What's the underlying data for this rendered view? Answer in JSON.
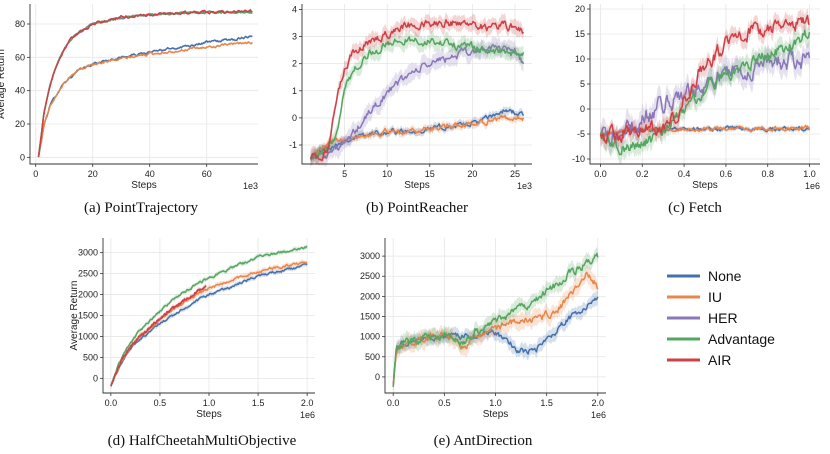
{
  "colors": {
    "None": "#4470ad",
    "IU": "#e8864b",
    "HER": "#8a78b8",
    "Advantage": "#55a661",
    "AIR": "#cc4145"
  },
  "legend": {
    "items": [
      {
        "name": "None",
        "label": "None"
      },
      {
        "name": "IU",
        "label": "IU"
      },
      {
        "name": "HER",
        "label": "HER"
      },
      {
        "name": "Advantage",
        "label": "Advantage"
      },
      {
        "name": "AIR",
        "label": "AIR"
      }
    ]
  },
  "chart_data": [
    {
      "type": "line",
      "id": "point-trajectory",
      "caption": "(a) PointTrajectory",
      "xlabel": "Steps",
      "ylabel": "Average Return",
      "x_multiplier": "1e3",
      "xlim": [
        -2,
        78
      ],
      "ylim": [
        -4,
        92
      ],
      "xticks": [
        0,
        20,
        40,
        60
      ],
      "xticklabels": [
        "0",
        "20",
        "40",
        "60"
      ],
      "yticks": [
        0,
        20,
        40,
        60,
        80
      ],
      "yticklabels": [
        "0",
        "20",
        "40",
        "60",
        "80"
      ],
      "series": [
        {
          "name": "None",
          "noise": 0.6,
          "band": 0.8,
          "x": [
            1,
            3,
            5,
            8,
            10,
            15,
            20,
            30,
            40,
            50,
            60,
            70,
            76
          ],
          "y": [
            0,
            20,
            31,
            40,
            45,
            52,
            56,
            60,
            63,
            66,
            69,
            71,
            73
          ]
        },
        {
          "name": "IU",
          "noise": 0.6,
          "band": 0.8,
          "x": [
            1,
            3,
            5,
            8,
            10,
            15,
            20,
            30,
            40,
            50,
            60,
            70,
            76
          ],
          "y": [
            0,
            20,
            31,
            40,
            45,
            52,
            56,
            59,
            62,
            64,
            66,
            68,
            69
          ]
        },
        {
          "name": "HER",
          "noise": 0.5,
          "band": 0.6,
          "x": [
            1,
            3,
            5,
            7,
            10,
            12,
            15,
            20,
            30,
            40,
            50,
            60,
            76
          ],
          "y": [
            0,
            28,
            43,
            54,
            65,
            70,
            75,
            80,
            84,
            85.5,
            86.5,
            87,
            87
          ]
        },
        {
          "name": "Advantage",
          "noise": 0.5,
          "band": 0.6,
          "x": [
            1,
            3,
            5,
            7,
            10,
            12,
            15,
            20,
            30,
            40,
            50,
            60,
            76
          ],
          "y": [
            0,
            28,
            43,
            54,
            65,
            70,
            75,
            80,
            84,
            85.5,
            86.5,
            87,
            87
          ]
        },
        {
          "name": "AIR",
          "noise": 0.7,
          "band": 0.6,
          "x": [
            1,
            3,
            5,
            7,
            10,
            12,
            15,
            20,
            30,
            40,
            50,
            60,
            76
          ],
          "y": [
            0,
            28,
            43,
            54,
            65,
            70,
            75,
            80,
            84,
            85.5,
            86.5,
            87,
            87.5
          ]
        }
      ]
    },
    {
      "type": "line",
      "id": "point-reacher",
      "caption": "(b) PointReacher",
      "xlabel": "Steps",
      "ylabel": "",
      "x_multiplier": "1e3",
      "xlim": [
        0,
        27
      ],
      "ylim": [
        -1.7,
        4.2
      ],
      "xticks": [
        5,
        10,
        15,
        20,
        25
      ],
      "xticklabels": [
        "5",
        "10",
        "15",
        "20",
        "25"
      ],
      "yticks": [
        -1,
        0,
        1,
        2,
        3,
        4
      ],
      "yticklabels": [
        "-1",
        "0",
        "1",
        "2",
        "3",
        "4"
      ],
      "series": [
        {
          "name": "None",
          "noise": 0.08,
          "band": 0.15,
          "x": [
            1,
            3,
            5,
            8,
            10,
            12,
            15,
            18,
            20,
            22,
            24,
            25,
            26
          ],
          "y": [
            -1.4,
            -1.1,
            -0.8,
            -0.6,
            -0.5,
            -0.5,
            -0.4,
            -0.3,
            -0.2,
            0.0,
            0.3,
            0.2,
            0.1
          ]
        },
        {
          "name": "IU",
          "noise": 0.08,
          "band": 0.15,
          "x": [
            1,
            3,
            5,
            8,
            10,
            12,
            15,
            18,
            20,
            22,
            24,
            26
          ],
          "y": [
            -1.4,
            -1.0,
            -0.7,
            -0.6,
            -0.5,
            -0.5,
            -0.4,
            -0.3,
            -0.2,
            -0.1,
            0.0,
            0.0
          ]
        },
        {
          "name": "HER",
          "noise": 0.12,
          "band": 0.35,
          "x": [
            1,
            3,
            5,
            7,
            9,
            12,
            15,
            18,
            21,
            24,
            25,
            26
          ],
          "y": [
            -1.4,
            -1.3,
            -1.0,
            -0.2,
            0.6,
            1.5,
            2.0,
            2.3,
            2.5,
            2.6,
            2.5,
            2.0
          ]
        },
        {
          "name": "Advantage",
          "noise": 0.12,
          "band": 0.3,
          "x": [
            1,
            3,
            4,
            5,
            6,
            8,
            10,
            12,
            15,
            18,
            20,
            22,
            24,
            26
          ],
          "y": [
            -1.4,
            -1.3,
            -0.5,
            1.0,
            1.8,
            2.4,
            2.7,
            2.9,
            2.8,
            2.7,
            2.6,
            2.5,
            2.4,
            2.3
          ]
        },
        {
          "name": "AIR",
          "noise": 0.12,
          "band": 0.3,
          "x": [
            1,
            3,
            4,
            5,
            6,
            8,
            10,
            12,
            15,
            18,
            20,
            22,
            24,
            26
          ],
          "y": [
            -1.4,
            -1.3,
            0.5,
            1.8,
            2.4,
            2.8,
            3.1,
            3.4,
            3.5,
            3.5,
            3.5,
            3.3,
            3.4,
            3.2
          ]
        }
      ]
    },
    {
      "type": "line",
      "id": "fetch",
      "caption": "(c) Fetch",
      "xlabel": "Steps",
      "ylabel": "",
      "x_multiplier": "1e6",
      "xlim": [
        -0.05,
        1.05
      ],
      "ylim": [
        -11,
        21
      ],
      "xticks": [
        0,
        0.2,
        0.4,
        0.6,
        0.8,
        1.0
      ],
      "xticklabels": [
        "0.0",
        "0.2",
        "0.4",
        "0.6",
        "0.8",
        "1.0"
      ],
      "yticks": [
        -10,
        -5,
        0,
        5,
        10,
        15,
        20
      ],
      "yticklabels": [
        "-10",
        "-5",
        "0",
        "5",
        "10",
        "15",
        "20"
      ],
      "series": [
        {
          "name": "None",
          "noise": 0.3,
          "band": 0.5,
          "x": [
            0,
            0.2,
            0.4,
            0.6,
            0.8,
            1.0
          ],
          "y": [
            -5,
            -4.2,
            -4,
            -4,
            -4,
            -3.8
          ]
        },
        {
          "name": "IU",
          "noise": 0.3,
          "band": 0.5,
          "x": [
            0,
            0.2,
            0.4,
            0.6,
            0.8,
            1.0
          ],
          "y": [
            -5,
            -4.2,
            -4,
            -4,
            -4,
            -3.8
          ]
        },
        {
          "name": "HER",
          "noise": 1.4,
          "band": 2.5,
          "x": [
            0,
            0.05,
            0.1,
            0.2,
            0.3,
            0.4,
            0.5,
            0.6,
            0.7,
            0.8,
            0.9,
            1.0
          ],
          "y": [
            -5,
            -6,
            -5,
            -2,
            1,
            3,
            5,
            7,
            8,
            9,
            9.5,
            10
          ]
        },
        {
          "name": "Advantage",
          "noise": 1.0,
          "band": 2.0,
          "x": [
            0,
            0.05,
            0.1,
            0.2,
            0.3,
            0.4,
            0.5,
            0.6,
            0.7,
            0.8,
            0.9,
            1.0
          ],
          "y": [
            -5,
            -7,
            -8,
            -7,
            -5,
            0,
            4,
            7,
            9,
            11,
            13,
            15
          ]
        },
        {
          "name": "AIR",
          "noise": 1.2,
          "band": 1.8,
          "x": [
            0,
            0.05,
            0.1,
            0.2,
            0.3,
            0.35,
            0.4,
            0.45,
            0.5,
            0.6,
            0.7,
            0.8,
            0.9,
            1.0
          ],
          "y": [
            -5,
            -5,
            -5,
            -4.5,
            -4,
            -2,
            2,
            6,
            9,
            13,
            15,
            16,
            17,
            17
          ]
        }
      ]
    },
    {
      "type": "line",
      "id": "halfcheetah-multiobjective",
      "caption": "(d) HalfCheetahMultiObjective",
      "xlabel": "Steps",
      "ylabel": "Average Return",
      "x_multiplier": "1e6",
      "xlim": [
        -0.08,
        2.08
      ],
      "ylim": [
        -350,
        3350
      ],
      "xticks": [
        0,
        0.5,
        1.0,
        1.5,
        2.0
      ],
      "xticklabels": [
        "0.0",
        "0.5",
        "1.0",
        "1.5",
        "2.0"
      ],
      "yticks": [
        0,
        500,
        1000,
        1500,
        2000,
        2500,
        3000
      ],
      "yticklabels": [
        "0",
        "500",
        "1000",
        "1500",
        "2000",
        "2500",
        "3000"
      ],
      "series": [
        {
          "name": "None",
          "noise": 25,
          "band": 60,
          "x": [
            0,
            0.05,
            0.1,
            0.2,
            0.3,
            0.5,
            0.7,
            1.0,
            1.3,
            1.5,
            1.8,
            2.0
          ],
          "y": [
            -200,
            100,
            350,
            700,
            950,
            1300,
            1600,
            2000,
            2250,
            2450,
            2600,
            2700
          ]
        },
        {
          "name": "IU",
          "noise": 25,
          "band": 70,
          "x": [
            0,
            0.05,
            0.1,
            0.2,
            0.3,
            0.5,
            0.7,
            1.0,
            1.3,
            1.5,
            1.8,
            2.0
          ],
          "y": [
            -200,
            100,
            380,
            750,
            1000,
            1400,
            1750,
            2150,
            2400,
            2550,
            2700,
            2780
          ]
        },
        {
          "name": "Advantage",
          "noise": 25,
          "band": 60,
          "x": [
            0,
            0.05,
            0.1,
            0.2,
            0.3,
            0.5,
            0.7,
            1.0,
            1.3,
            1.5,
            1.8,
            2.0
          ],
          "y": [
            -200,
            150,
            450,
            850,
            1150,
            1600,
            2000,
            2400,
            2700,
            2900,
            3050,
            3150
          ]
        },
        {
          "name": "AIR",
          "noise": 25,
          "band": 60,
          "x": [
            0,
            0.05,
            0.1,
            0.2,
            0.3,
            0.5,
            0.7,
            0.8,
            0.9,
            0.97
          ],
          "y": [
            -200,
            100,
            380,
            760,
            1010,
            1420,
            1800,
            1950,
            2100,
            2200
          ]
        }
      ]
    },
    {
      "type": "line",
      "id": "ant-direction",
      "caption": "(e) AntDirection",
      "xlabel": "Steps",
      "ylabel": "",
      "x_multiplier": "1e6",
      "xlim": [
        -0.08,
        2.08
      ],
      "ylim": [
        -400,
        3450
      ],
      "xticks": [
        0,
        0.5,
        1.0,
        1.5,
        2.0
      ],
      "xticklabels": [
        "0.0",
        "0.5",
        "1.0",
        "1.5",
        "2.0"
      ],
      "yticks": [
        0,
        500,
        1000,
        1500,
        2000,
        2500,
        3000
      ],
      "yticklabels": [
        "0",
        "500",
        "1000",
        "1500",
        "2000",
        "2500",
        "3000"
      ],
      "series": [
        {
          "name": "None",
          "noise": 60,
          "band": 180,
          "x": [
            0,
            0.03,
            0.1,
            0.3,
            0.5,
            0.7,
            0.9,
            1.0,
            1.1,
            1.2,
            1.3,
            1.4,
            1.5,
            1.7,
            1.9,
            2.0
          ],
          "y": [
            -200,
            700,
            850,
            950,
            1000,
            1000,
            1050,
            1100,
            950,
            700,
            600,
            700,
            900,
            1400,
            1800,
            1950
          ]
        },
        {
          "name": "IU",
          "noise": 80,
          "band": 220,
          "x": [
            0,
            0.03,
            0.1,
            0.3,
            0.5,
            0.6,
            0.7,
            0.8,
            0.9,
            1.0,
            1.1,
            1.2,
            1.4,
            1.6,
            1.8,
            1.9,
            2.0
          ],
          "y": [
            -200,
            700,
            850,
            950,
            1000,
            900,
            750,
            1000,
            1100,
            1200,
            1300,
            1400,
            1450,
            1650,
            2200,
            2600,
            2200
          ]
        },
        {
          "name": "Advantage",
          "noise": 80,
          "band": 200,
          "x": [
            0,
            0.03,
            0.1,
            0.3,
            0.5,
            0.6,
            0.7,
            0.8,
            0.9,
            1.0,
            1.2,
            1.4,
            1.6,
            1.8,
            2.0
          ],
          "y": [
            -200,
            700,
            850,
            950,
            1000,
            900,
            850,
            1150,
            1250,
            1400,
            1650,
            1900,
            2300,
            2700,
            3000
          ]
        }
      ]
    }
  ]
}
